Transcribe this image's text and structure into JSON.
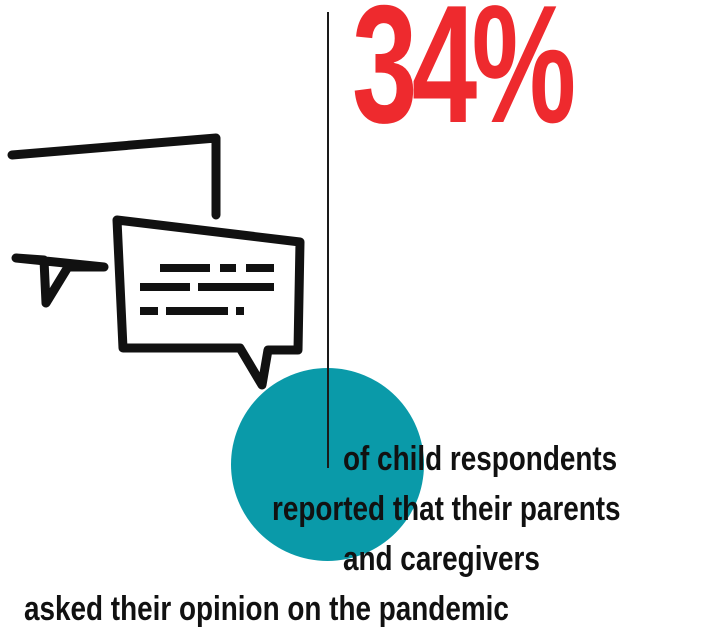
{
  "statistic": {
    "value": "34%",
    "color": "#ee2a2e"
  },
  "caption": {
    "lines": [
      "of child respondents",
      "reported that their parents",
      "and caregivers",
      "asked their opinion on the pandemic"
    ]
  },
  "icon": {
    "name": "chat-bubbles-icon"
  },
  "colors": {
    "accent_circle": "#0a9aa9",
    "text": "#111111"
  }
}
